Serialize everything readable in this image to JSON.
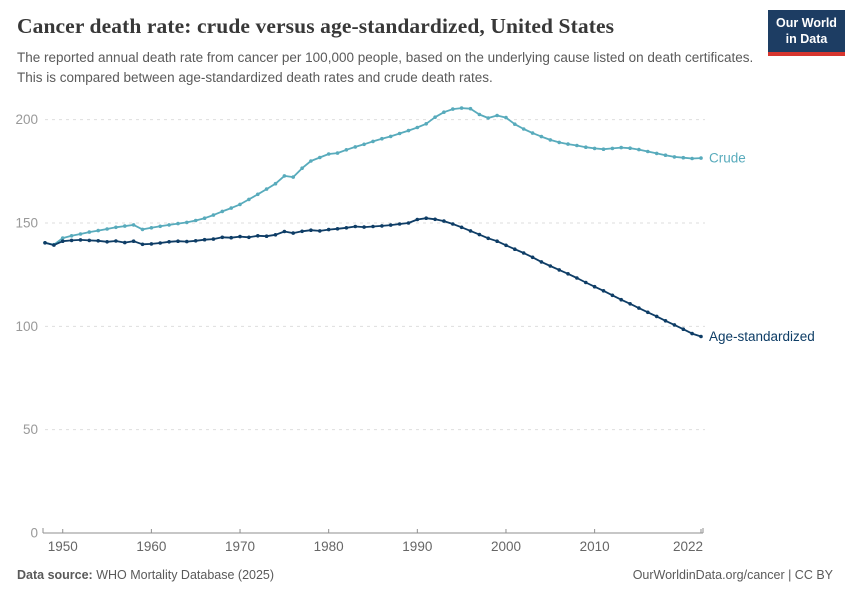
{
  "header": {
    "title": "Cancer death rate: crude versus age-standardized, United States",
    "subtitle": "The reported annual death rate from cancer per 100,000 people, based on the underlying cause listed on death certificates. This is compared between age-standardized death rates and crude death rates.",
    "logo_line1": "Our World",
    "logo_line2": "in Data"
  },
  "chart_data": {
    "type": "line",
    "title": "Cancer death rate: crude versus age-standardized, United States",
    "xlabel": "",
    "ylabel": "",
    "ylim": [
      0,
      210
    ],
    "yticks": [
      0,
      50,
      100,
      150,
      200
    ],
    "xticks": [
      1950,
      1960,
      1970,
      1980,
      1990,
      2000,
      2010,
      2022
    ],
    "grid": true,
    "legend_position": "end-of-line",
    "x": [
      1948,
      1949,
      1950,
      1951,
      1952,
      1953,
      1954,
      1955,
      1956,
      1957,
      1958,
      1959,
      1960,
      1961,
      1962,
      1963,
      1964,
      1965,
      1966,
      1967,
      1968,
      1969,
      1970,
      1971,
      1972,
      1973,
      1974,
      1975,
      1976,
      1977,
      1978,
      1979,
      1980,
      1981,
      1982,
      1983,
      1984,
      1985,
      1986,
      1987,
      1988,
      1989,
      1990,
      1991,
      1992,
      1993,
      1994,
      1995,
      1996,
      1997,
      1998,
      1999,
      2000,
      2001,
      2002,
      2003,
      2004,
      2005,
      2006,
      2007,
      2008,
      2009,
      2010,
      2011,
      2012,
      2013,
      2014,
      2015,
      2016,
      2017,
      2018,
      2019,
      2020,
      2021,
      2022
    ],
    "series": [
      {
        "name": "Crude",
        "color": "#58ABBC",
        "values": [
          140.4,
          139.5,
          142.7,
          143.8,
          144.7,
          145.6,
          146.3,
          147.1,
          147.9,
          148.5,
          149.1,
          146.9,
          147.7,
          148.4,
          149.1,
          149.7,
          150.3,
          151.2,
          152.3,
          153.8,
          155.6,
          157.2,
          159.0,
          161.4,
          163.9,
          166.4,
          169.0,
          172.8,
          172.2,
          176.5,
          180.0,
          181.7,
          183.4,
          183.8,
          185.4,
          186.8,
          188.1,
          189.5,
          190.8,
          191.9,
          193.3,
          194.7,
          196.2,
          198.0,
          201.2,
          203.6,
          205.1,
          205.6,
          205.3,
          202.5,
          200.8,
          202.0,
          201.0,
          197.8,
          195.5,
          193.5,
          191.8,
          190.2,
          189.0,
          188.2,
          187.5,
          186.7,
          186.1,
          185.7,
          186.1,
          186.5,
          186.2,
          185.5,
          184.6,
          183.7,
          182.8,
          182.0,
          181.6,
          181.2,
          181.4
        ]
      },
      {
        "name": "Age-standardized",
        "color": "#0E3D66",
        "values": [
          140.4,
          139.3,
          141.2,
          141.6,
          141.8,
          141.6,
          141.4,
          140.9,
          141.3,
          140.5,
          141.2,
          139.7,
          139.9,
          140.3,
          140.9,
          141.2,
          141.0,
          141.4,
          141.9,
          142.2,
          143.1,
          142.9,
          143.4,
          143.1,
          143.8,
          143.6,
          144.3,
          145.9,
          145.1,
          146.0,
          146.5,
          146.2,
          146.8,
          147.2,
          147.7,
          148.3,
          148.0,
          148.3,
          148.6,
          149.0,
          149.5,
          150.0,
          151.7,
          152.3,
          151.8,
          150.9,
          149.5,
          147.9,
          146.2,
          144.4,
          142.6,
          141.2,
          139.2,
          137.3,
          135.5,
          133.4,
          131.2,
          129.2,
          127.3,
          125.4,
          123.4,
          121.2,
          119.2,
          117.2,
          115.0,
          112.9,
          110.9,
          108.8,
          106.8,
          104.8,
          102.7,
          100.7,
          98.6,
          96.5,
          95.1
        ]
      }
    ],
    "style": {
      "grid_color": "#dedede",
      "axis_color": "#8f8f8f",
      "ytick_color": "#999999",
      "xtick_color": "#666666"
    }
  },
  "footer": {
    "source_label": "Data source:",
    "source_value": " WHO Mortality Database (2025)",
    "right": "OurWorldinData.org/cancer | CC BY"
  }
}
